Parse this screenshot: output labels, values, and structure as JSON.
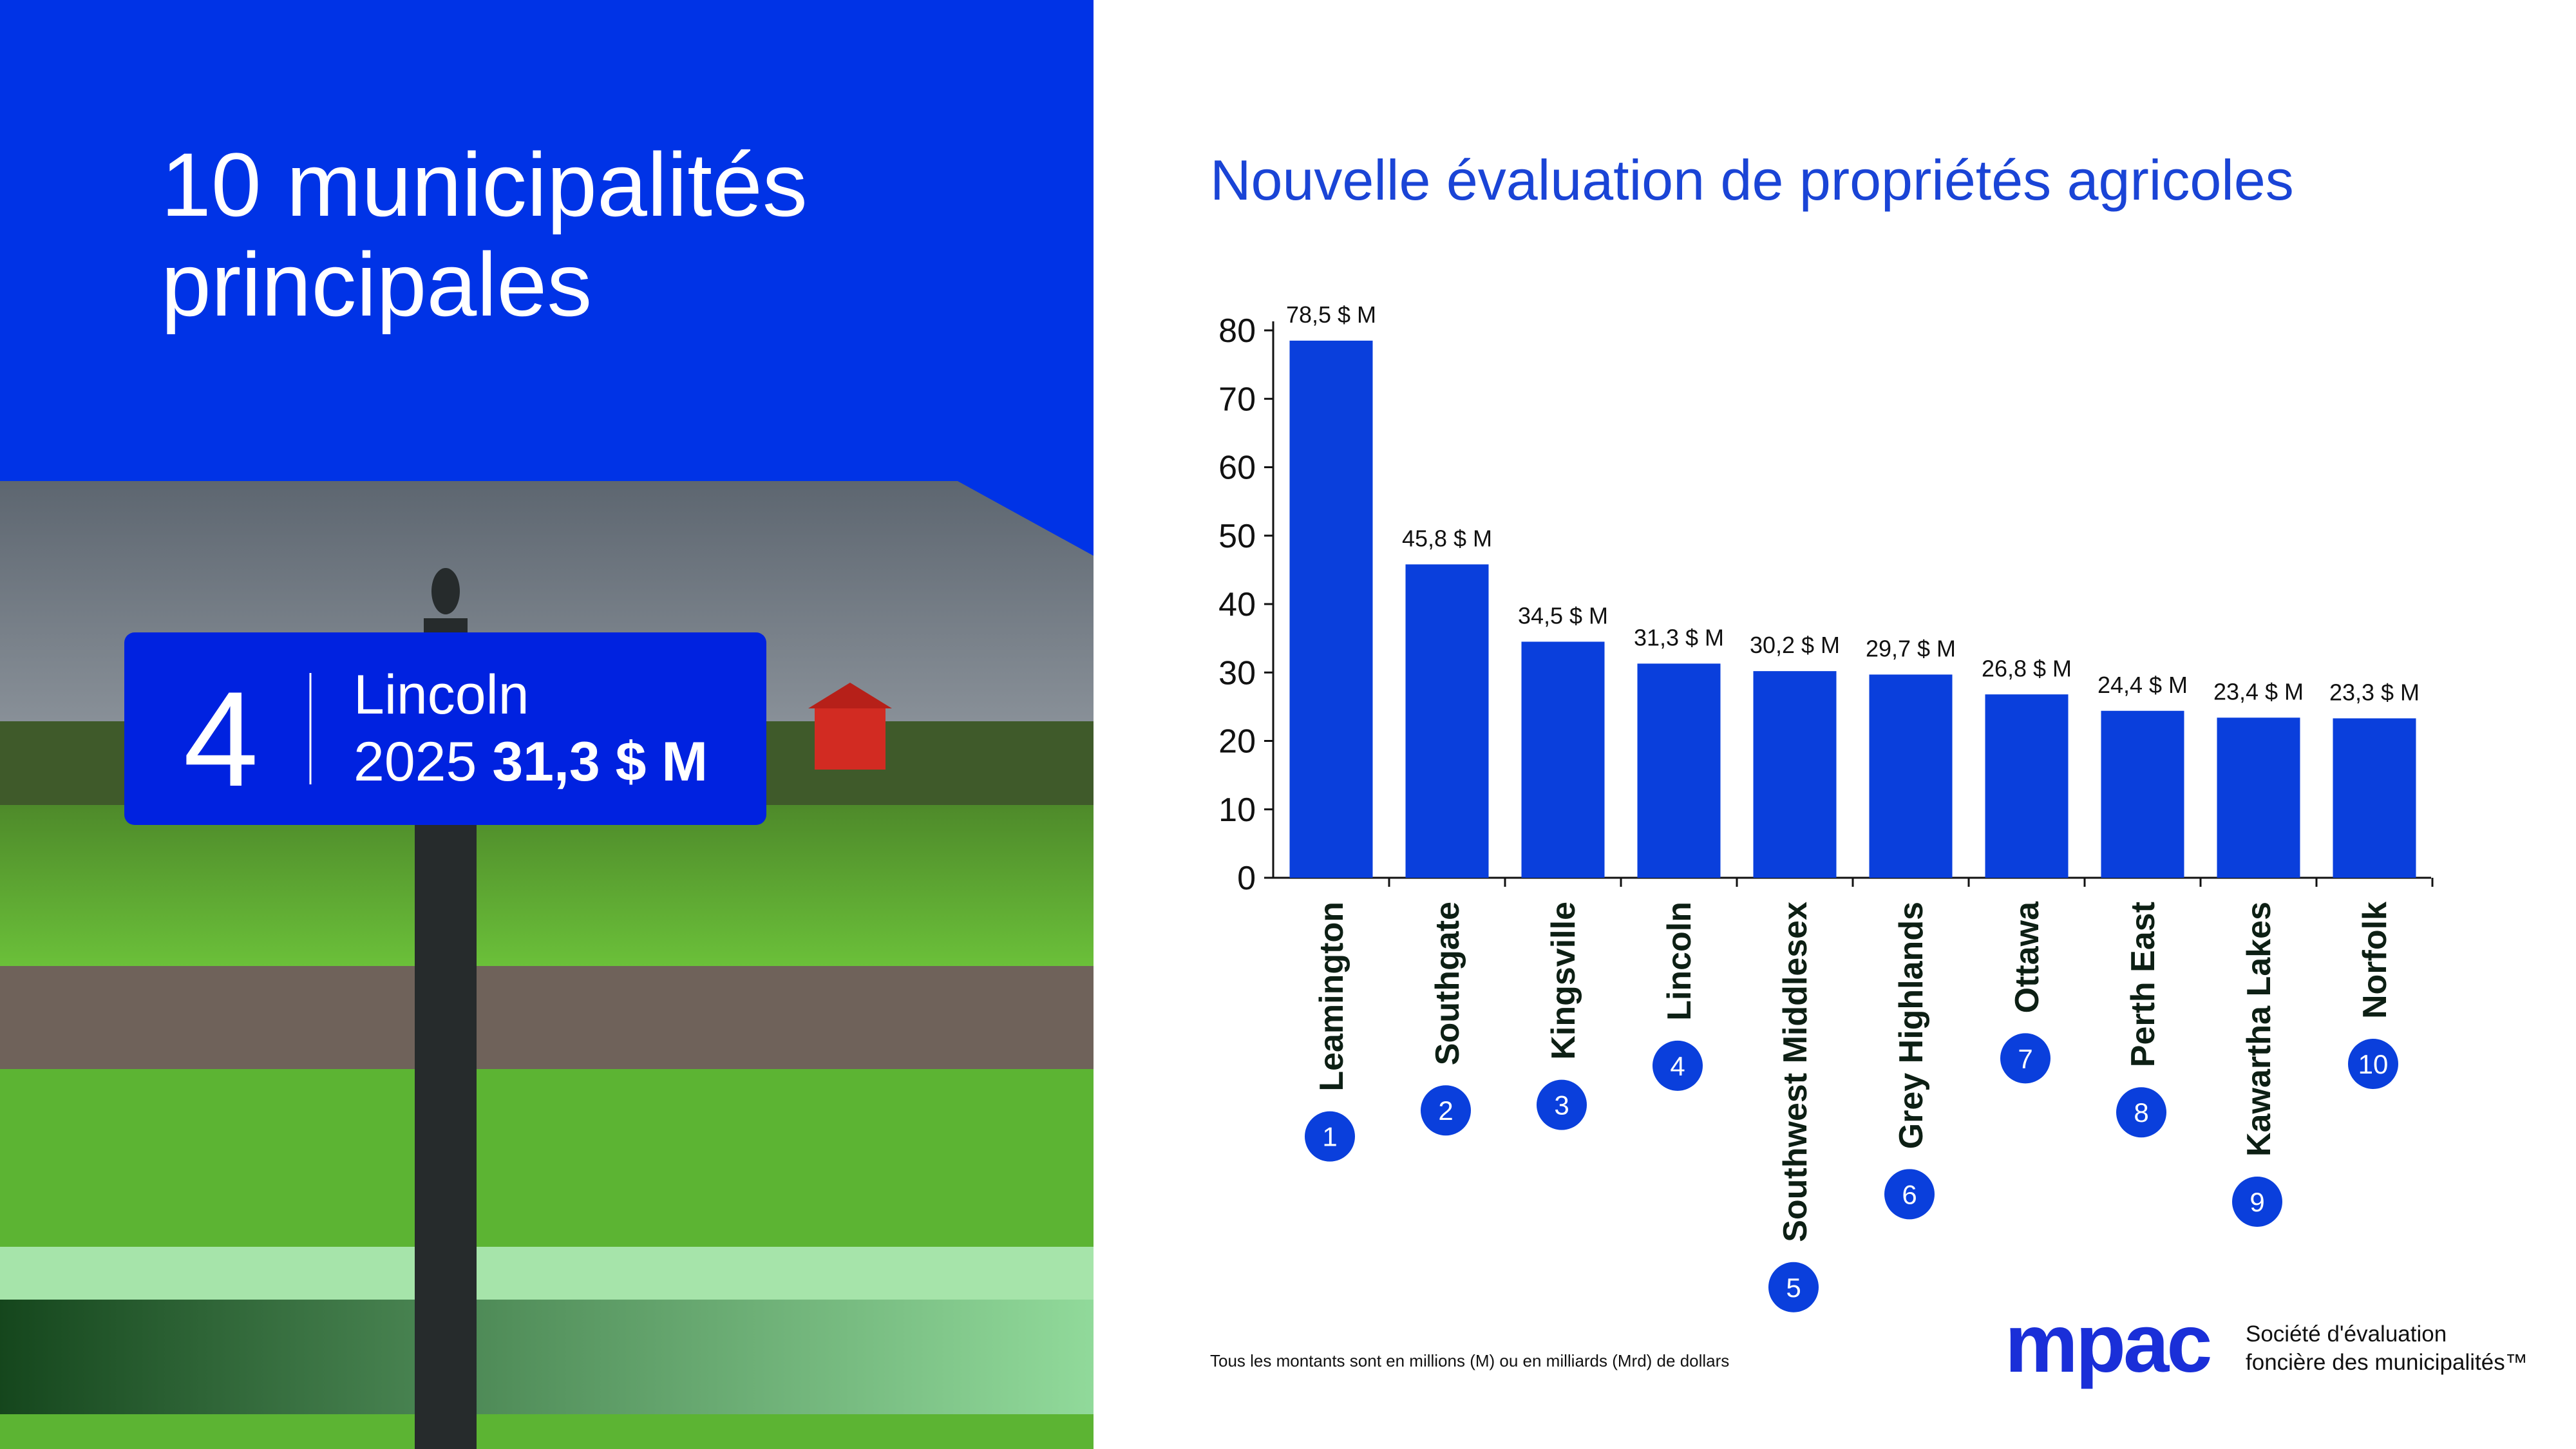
{
  "panel": {
    "heading": [
      "10 municipalités",
      "principales"
    ],
    "sign": {
      "rank": 4,
      "name": "Lincoln",
      "year": "2025",
      "amount": "31,3 $ M"
    }
  },
  "chart_data": {
    "type": "bar",
    "title": "Nouvelle évaluation de propriétés agricoles",
    "categories": [
      "Leamington",
      "Southgate",
      "Kingsville",
      "Lincoln",
      "Southwest Middlesex",
      "Grey Highlands",
      "Ottawa",
      "Perth East",
      "Kawartha Lakes",
      "Norfolk"
    ],
    "values": [
      78.5,
      45.8,
      34.5,
      31.3,
      30.2,
      29.7,
      26.8,
      24.4,
      23.4,
      23.3
    ],
    "value_labels": [
      "78,5 $ M",
      "45,8 $ M",
      "34,5 $ M",
      "31,3 $ M",
      "30,2 $ M",
      "29,7 $ M",
      "26,8 $ M",
      "24,4 $ M",
      "23,4 $ M",
      "23,3 $ M"
    ],
    "ranks": [
      1,
      2,
      3,
      4,
      5,
      6,
      7,
      8,
      9,
      10
    ],
    "color": "#0a3fdc",
    "ylim": [
      0,
      80
    ],
    "yticks": [
      0,
      10,
      20,
      30,
      40,
      50,
      60,
      70,
      80
    ],
    "grid": false
  },
  "footnote": "Tous les montants sont en millions (M) ou en milliards (Mrd) de dollars",
  "logo": {
    "mark": "mpac",
    "line1": "Société d'évaluation",
    "line2": "foncière des municipalités™"
  }
}
